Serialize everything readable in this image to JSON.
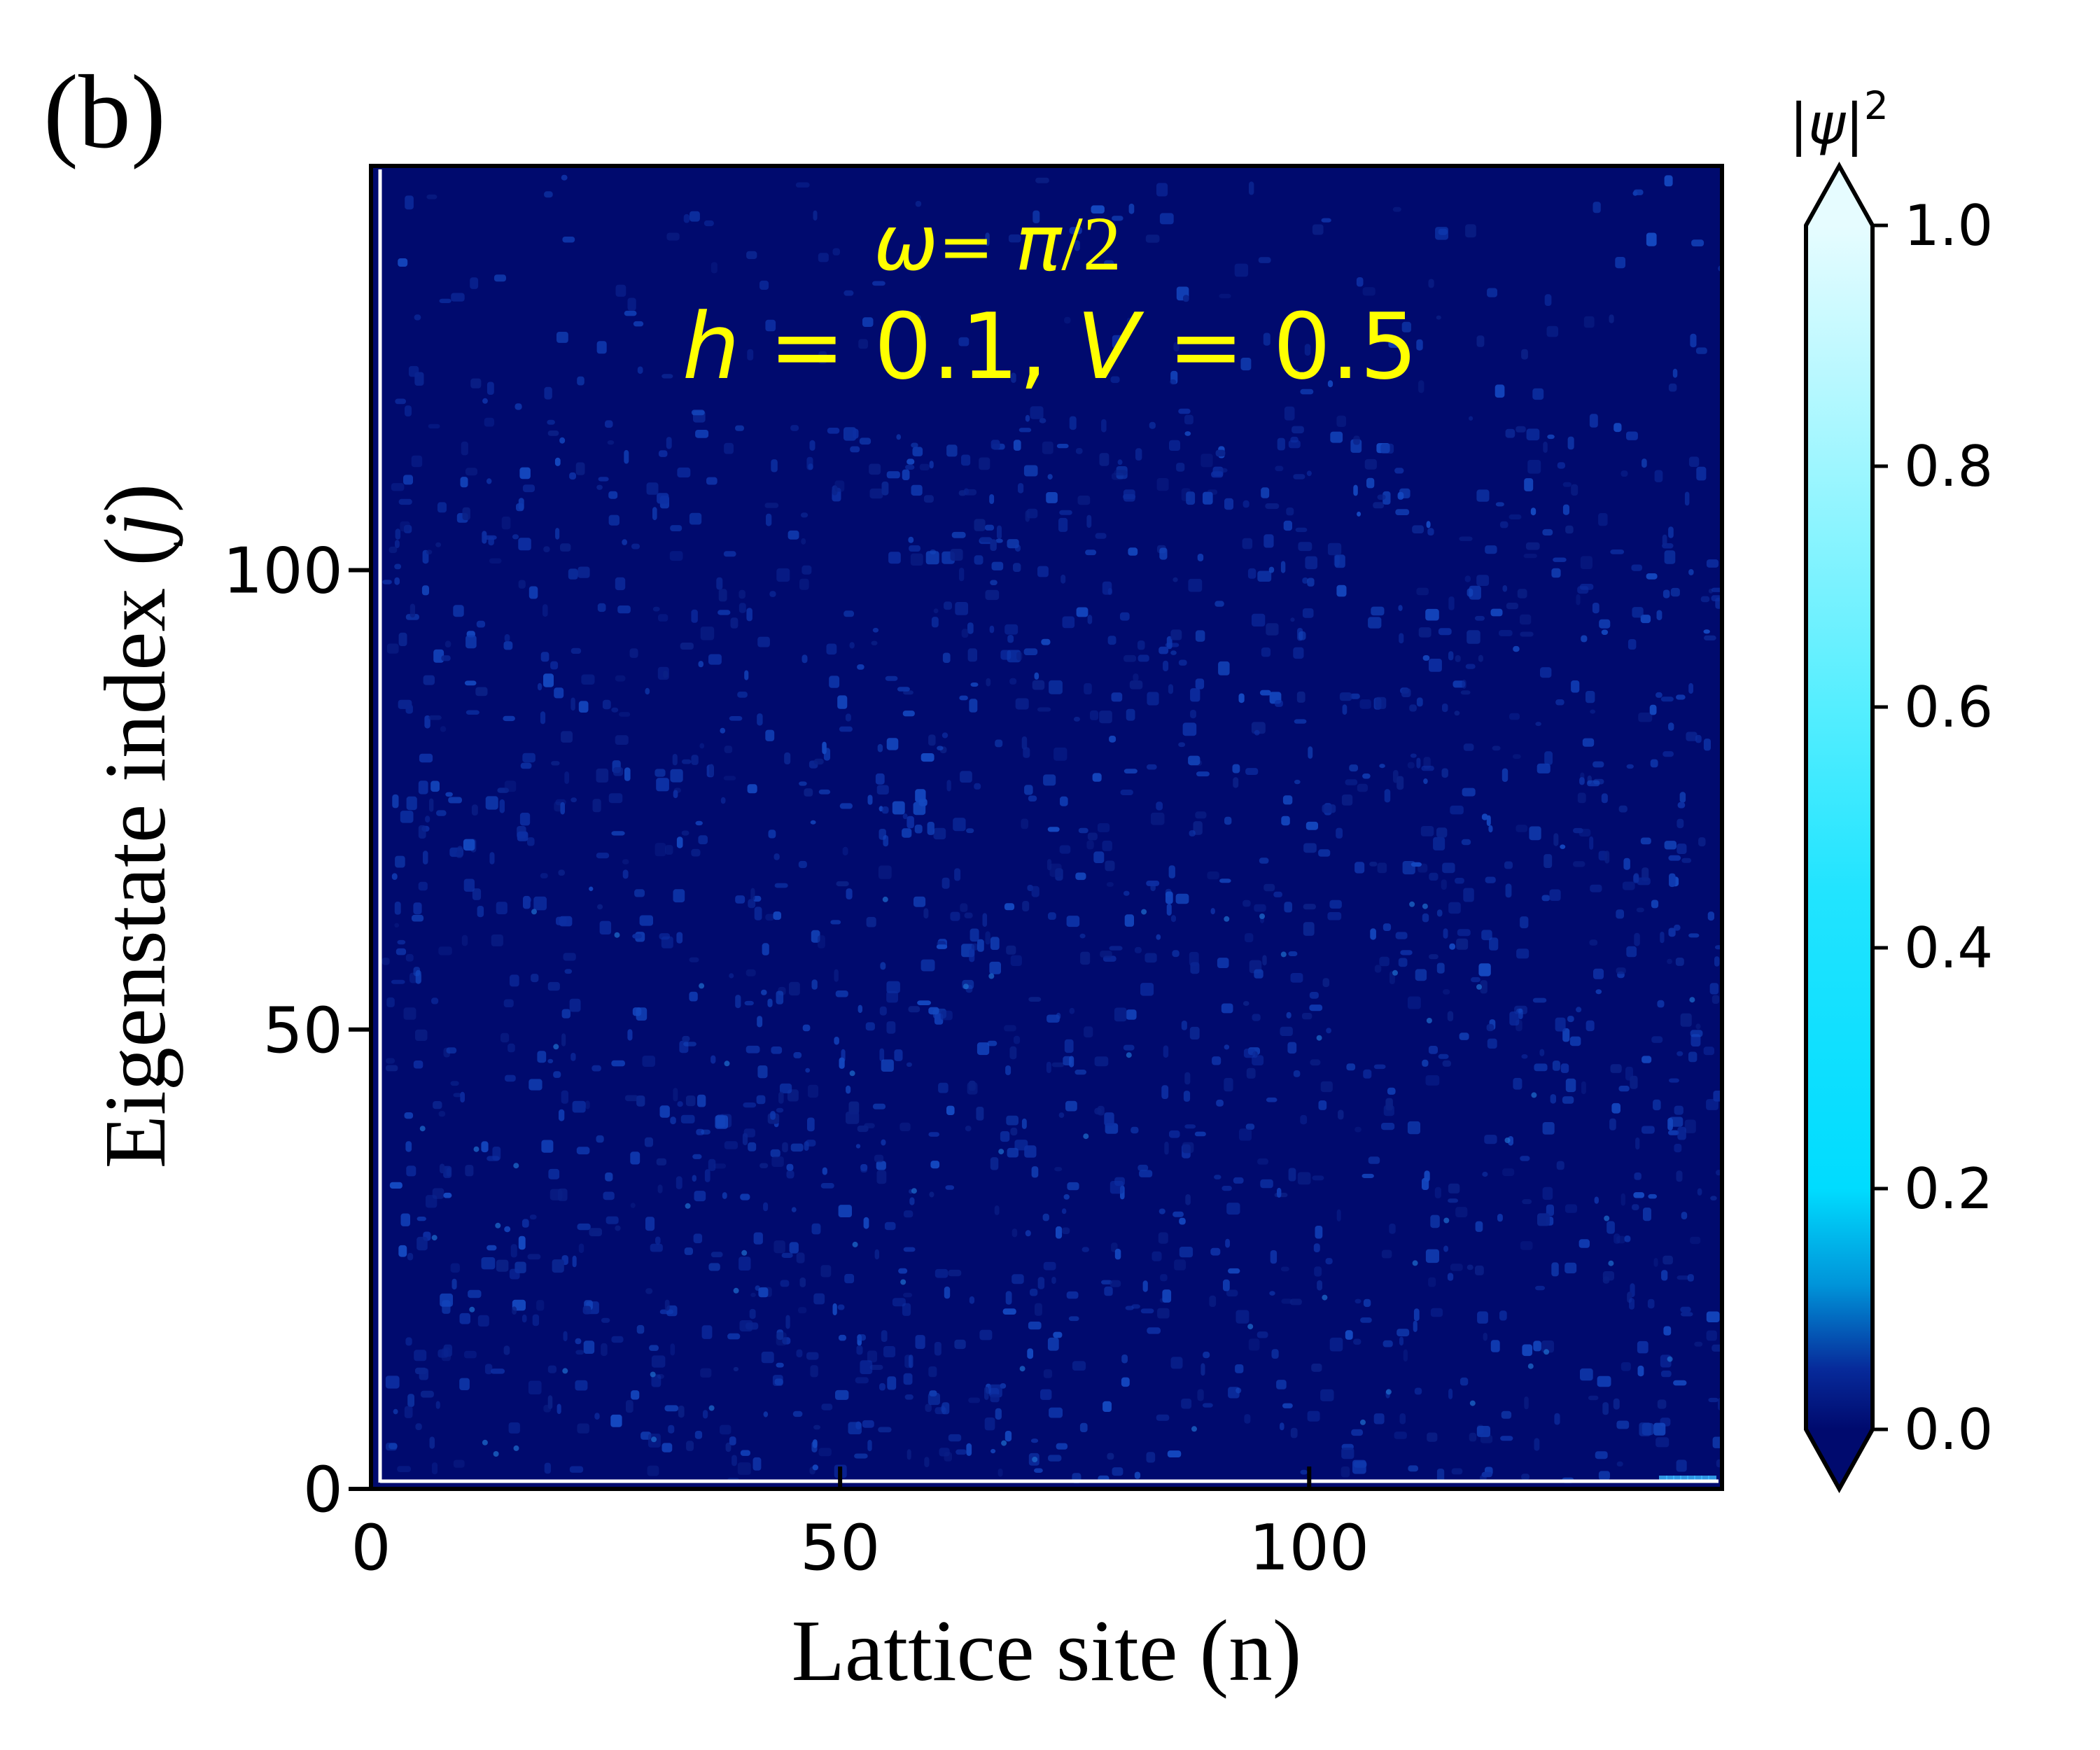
{
  "panel_label": "(b)",
  "colors": {
    "annotation": "#ffff00",
    "axis": "#000000",
    "background": "#000a6e"
  },
  "chart_data": {
    "type": "heatmap",
    "xlabel": "Lattice site (n)",
    "ylabel_prefix": "Eigenstate index (",
    "ylabel_var": "j",
    "ylabel_suffix": ")",
    "xlim": [
      0,
      144
    ],
    "ylim": [
      0,
      144
    ],
    "x_ticks": [
      0,
      50,
      100
    ],
    "y_ticks": [
      0,
      50,
      100
    ],
    "annotation_line1": {
      "omega": "ω",
      "eq": "= ",
      "pi": "π",
      "rest": "/2"
    },
    "annotation_line2": {
      "h": "h",
      "mid1": " = 0.1, ",
      "V": "V",
      "mid2": " = 0.5"
    },
    "colorbar": {
      "label_pre": "|",
      "label_var": "ψ",
      "label_post": "|",
      "label_exp": "2",
      "range": [
        0.0,
        1.0
      ],
      "extend": "both",
      "ticks": [
        "0.0",
        "0.2",
        "0.4",
        "0.6",
        "0.8",
        "1.0"
      ],
      "colormap": [
        "#000a6e",
        "#0a2fa8",
        "#0094d9",
        "#00dcff",
        "#55eeff",
        "#9ef6ff",
        "#e6fcff"
      ]
    }
  }
}
